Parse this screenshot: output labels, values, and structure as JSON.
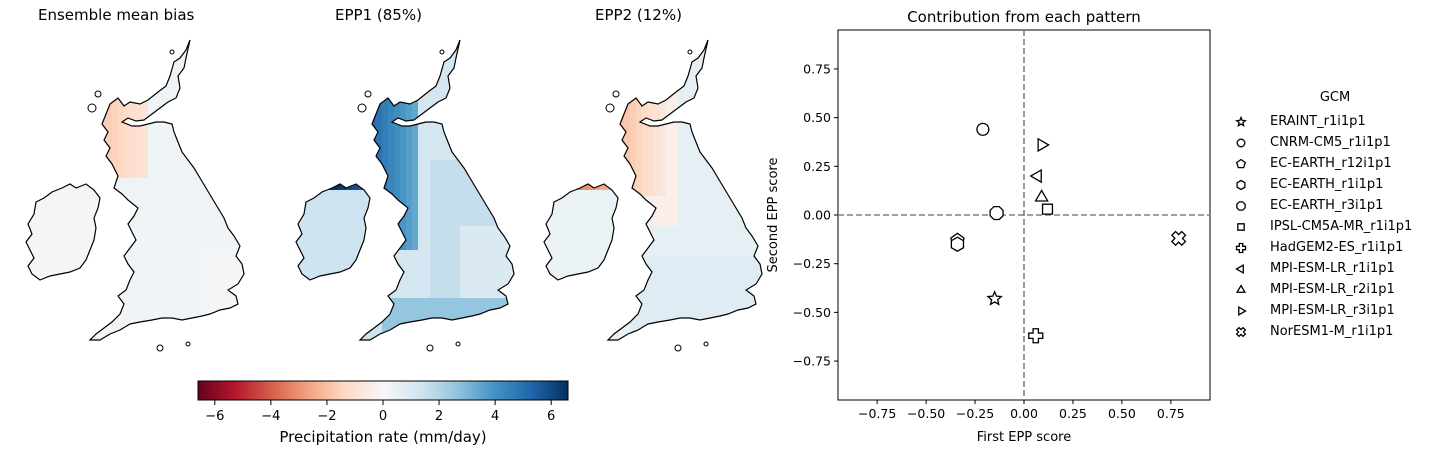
{
  "maps": [
    {
      "title": "Ensemble mean bias",
      "pattern": "bias"
    },
    {
      "title": "EPP1 (85%)",
      "pattern": "epp1"
    },
    {
      "title": "EPP2 (12%)",
      "pattern": "epp2"
    }
  ],
  "colorbar": {
    "label": "Precipitation rate (mm/day)",
    "range": [
      -6.6,
      6.6
    ],
    "ticks": [
      "−6",
      "−4",
      "−2",
      "0",
      "2",
      "4",
      "6"
    ],
    "tick_values": [
      -6,
      -4,
      -2,
      0,
      2,
      4,
      6
    ],
    "colormap": "RdBu",
    "colors": [
      "#67001f",
      "#b2182b",
      "#d6604d",
      "#f4a582",
      "#fddbc7",
      "#f7f7f7",
      "#d1e5f0",
      "#92c5de",
      "#4393c3",
      "#2166ac",
      "#053061"
    ]
  },
  "chart_data": {
    "type": "scatter",
    "title": "Contribution from each pattern",
    "xlabel": "First EPP score",
    "ylabel": "Second EPP score",
    "xlim": [
      -0.95,
      0.95
    ],
    "ylim": [
      -0.95,
      0.95
    ],
    "xticks": [
      "−0.75",
      "−0.50",
      "−0.25",
      "0.00",
      "0.25",
      "0.50",
      "0.75"
    ],
    "yticks": [
      "−0.75",
      "−0.50",
      "−0.25",
      "0.00",
      "0.25",
      "0.50",
      "0.75"
    ],
    "tick_values": [
      -0.75,
      -0.5,
      -0.25,
      0,
      0.25,
      0.5,
      0.75
    ],
    "reference_lines": {
      "x": 0,
      "y": 0,
      "style": "dashed",
      "color": "#808080"
    },
    "legend_title": "GCM",
    "legend_position": "right",
    "series": [
      {
        "name": "ERAINT_r1i1p1",
        "marker": "star",
        "x": -0.15,
        "y": -0.43
      },
      {
        "name": "CNRM-CM5_r1i1p1",
        "marker": "circle",
        "x": -0.21,
        "y": 0.44
      },
      {
        "name": "EC-EARTH_r12i1p1",
        "marker": "pentagon",
        "x": -0.34,
        "y": -0.13
      },
      {
        "name": "EC-EARTH_r1i1p1",
        "marker": "hexagon",
        "x": -0.34,
        "y": -0.15
      },
      {
        "name": "EC-EARTH_r3i1p1",
        "marker": "octagon",
        "x": -0.14,
        "y": 0.01
      },
      {
        "name": "IPSL-CM5A-MR_r1i1p1",
        "marker": "square",
        "x": 0.12,
        "y": 0.03
      },
      {
        "name": "HadGEM2-ES_r1i1p1",
        "marker": "plus",
        "x": 0.06,
        "y": -0.62
      },
      {
        "name": "MPI-ESM-LR_r1i1p1",
        "marker": "triangle-left",
        "x": 0.07,
        "y": 0.2
      },
      {
        "name": "MPI-ESM-LR_r2i1p1",
        "marker": "triangle-up",
        "x": 0.09,
        "y": 0.09
      },
      {
        "name": "MPI-ESM-LR_r3i1p1",
        "marker": "triangle-right",
        "x": 0.09,
        "y": 0.36
      },
      {
        "name": "NorESM1-M_r1i1p1",
        "marker": "x-filled",
        "x": 0.79,
        "y": -0.12
      }
    ]
  }
}
